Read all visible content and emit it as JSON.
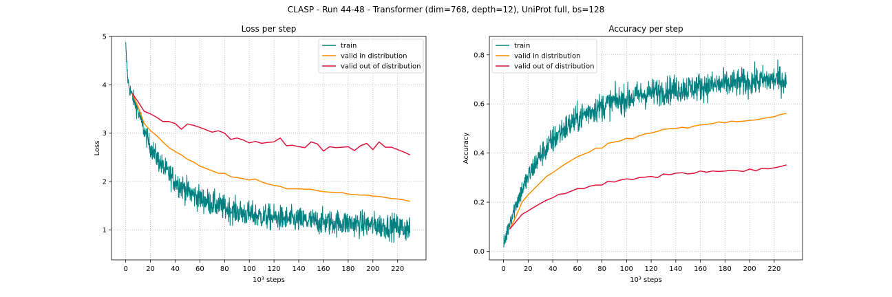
{
  "suptitle": "CLASP - Run 44-48 - Transformer (dim=768, depth=12), UniProt full, bs=128",
  "colors": {
    "train": "#008080",
    "valid_in": "#ff8c00",
    "valid_out": "#dc143c",
    "grid": "#b0b0b0"
  },
  "chart_data": [
    {
      "type": "line",
      "title": "Loss per step",
      "xlabel": "10³ steps",
      "ylabel": "Loss",
      "xlim": [
        -11.5,
        243
      ],
      "ylim": [
        0.38,
        5.0
      ],
      "xticks": [
        0,
        20,
        40,
        60,
        80,
        100,
        120,
        140,
        160,
        180,
        200,
        220
      ],
      "yticks": [
        1,
        2,
        3,
        4,
        5
      ],
      "grid": true,
      "legend": "top-right",
      "series": [
        {
          "name": "train",
          "color_key": "train",
          "noise": 0.13,
          "x": [
            0,
            1,
            2,
            4,
            6,
            8,
            10,
            12,
            15,
            18,
            20,
            25,
            30,
            35,
            40,
            45,
            50,
            55,
            60,
            70,
            80,
            90,
            100,
            110,
            120,
            130,
            140,
            150,
            160,
            170,
            180,
            190,
            200,
            210,
            220,
            225,
            230
          ],
          "y": [
            4.8,
            4.35,
            4.05,
            3.85,
            3.72,
            3.6,
            3.45,
            3.3,
            3.05,
            2.85,
            2.72,
            2.5,
            2.3,
            2.15,
            2.02,
            1.9,
            1.8,
            1.72,
            1.65,
            1.55,
            1.45,
            1.38,
            1.32,
            1.28,
            1.25,
            1.22,
            1.2,
            1.18,
            1.16,
            1.15,
            1.14,
            1.12,
            1.1,
            1.08,
            1.06,
            1.03,
            1.02
          ]
        },
        {
          "name": "valid in distribution",
          "color_key": "valid_in",
          "x": [
            5,
            10,
            15,
            20,
            25,
            30,
            35,
            40,
            45,
            50,
            55,
            60,
            65,
            70,
            75,
            80,
            85,
            90,
            95,
            100,
            105,
            110,
            115,
            120,
            125,
            130,
            135,
            140,
            145,
            150,
            155,
            160,
            165,
            170,
            175,
            180,
            185,
            190,
            195,
            200,
            205,
            210,
            215,
            220,
            225,
            230
          ],
          "y": [
            3.83,
            3.55,
            3.2,
            3.05,
            2.95,
            2.82,
            2.7,
            2.62,
            2.55,
            2.46,
            2.4,
            2.32,
            2.27,
            2.22,
            2.17,
            2.17,
            2.1,
            2.08,
            2.06,
            2.03,
            2.05,
            1.99,
            1.95,
            1.92,
            1.9,
            1.85,
            1.85,
            1.85,
            1.84,
            1.84,
            1.81,
            1.79,
            1.78,
            1.77,
            1.77,
            1.74,
            1.73,
            1.72,
            1.72,
            1.7,
            1.69,
            1.67,
            1.65,
            1.64,
            1.62,
            1.59
          ]
        },
        {
          "name": "valid out of distribution",
          "color_key": "valid_out",
          "x": [
            5,
            10,
            15,
            20,
            25,
            30,
            35,
            40,
            45,
            50,
            55,
            60,
            65,
            70,
            75,
            80,
            85,
            90,
            95,
            100,
            105,
            110,
            115,
            120,
            125,
            130,
            135,
            140,
            145,
            150,
            155,
            160,
            165,
            170,
            175,
            180,
            185,
            190,
            195,
            200,
            205,
            210,
            215,
            220,
            225,
            230
          ],
          "y": [
            3.83,
            3.65,
            3.45,
            3.4,
            3.33,
            3.24,
            3.24,
            3.2,
            3.08,
            3.19,
            3.16,
            3.12,
            3.07,
            3.02,
            3.05,
            3.0,
            2.87,
            2.9,
            2.86,
            2.8,
            2.83,
            2.79,
            2.81,
            2.82,
            2.9,
            2.74,
            2.75,
            2.72,
            2.7,
            2.82,
            2.78,
            2.63,
            2.72,
            2.7,
            2.71,
            2.72,
            2.64,
            2.74,
            2.79,
            2.66,
            2.82,
            2.71,
            2.71,
            2.66,
            2.61,
            2.55
          ]
        }
      ]
    },
    {
      "type": "line",
      "title": "Accuracy per step",
      "xlabel": "10³ steps",
      "ylabel": "Accuracy",
      "xlim": [
        -11.5,
        243
      ],
      "ylim": [
        -0.035,
        0.875
      ],
      "xticks": [
        0,
        20,
        40,
        60,
        80,
        100,
        120,
        140,
        160,
        180,
        200,
        220
      ],
      "yticks": [
        0.0,
        0.2,
        0.4,
        0.6,
        0.8
      ],
      "ytick_labels": [
        "0.0",
        "0.2",
        "0.4",
        "0.6",
        "0.8"
      ],
      "grid": true,
      "legend": "top-left",
      "series": [
        {
          "name": "train",
          "color_key": "train",
          "noise": 0.028,
          "x": [
            0,
            2,
            5,
            8,
            10,
            15,
            20,
            25,
            30,
            35,
            40,
            45,
            50,
            55,
            60,
            70,
            80,
            90,
            100,
            110,
            120,
            130,
            140,
            150,
            160,
            170,
            180,
            190,
            200,
            210,
            220,
            225,
            230
          ],
          "y": [
            0.02,
            0.06,
            0.12,
            0.16,
            0.19,
            0.25,
            0.3,
            0.35,
            0.39,
            0.42,
            0.45,
            0.48,
            0.5,
            0.52,
            0.54,
            0.57,
            0.59,
            0.61,
            0.62,
            0.635,
            0.645,
            0.655,
            0.66,
            0.665,
            0.67,
            0.675,
            0.68,
            0.685,
            0.69,
            0.695,
            0.7,
            0.7,
            0.69
          ]
        },
        {
          "name": "valid in distribution",
          "color_key": "valid_in",
          "x": [
            5,
            10,
            15,
            20,
            25,
            30,
            35,
            40,
            45,
            50,
            55,
            60,
            65,
            70,
            75,
            80,
            85,
            90,
            95,
            100,
            105,
            110,
            115,
            120,
            125,
            130,
            135,
            140,
            145,
            150,
            155,
            160,
            165,
            170,
            175,
            180,
            185,
            190,
            195,
            200,
            205,
            210,
            215,
            220,
            225,
            230
          ],
          "y": [
            0.09,
            0.14,
            0.2,
            0.23,
            0.255,
            0.28,
            0.305,
            0.32,
            0.338,
            0.355,
            0.37,
            0.385,
            0.395,
            0.405,
            0.42,
            0.42,
            0.44,
            0.445,
            0.45,
            0.46,
            0.458,
            0.47,
            0.478,
            0.482,
            0.488,
            0.497,
            0.499,
            0.5,
            0.505,
            0.502,
            0.51,
            0.515,
            0.517,
            0.52,
            0.527,
            0.523,
            0.53,
            0.528,
            0.53,
            0.533,
            0.535,
            0.54,
            0.545,
            0.548,
            0.557,
            0.562
          ]
        },
        {
          "name": "valid out of distribution",
          "color_key": "valid_out",
          "x": [
            5,
            10,
            15,
            20,
            25,
            30,
            35,
            40,
            45,
            50,
            55,
            60,
            65,
            70,
            75,
            80,
            85,
            90,
            95,
            100,
            105,
            110,
            115,
            120,
            125,
            130,
            135,
            140,
            145,
            150,
            155,
            160,
            165,
            170,
            175,
            180,
            185,
            190,
            195,
            200,
            205,
            210,
            215,
            220,
            225,
            230
          ],
          "y": [
            0.09,
            0.12,
            0.15,
            0.165,
            0.18,
            0.195,
            0.208,
            0.218,
            0.232,
            0.235,
            0.245,
            0.255,
            0.255,
            0.265,
            0.27,
            0.27,
            0.285,
            0.282,
            0.29,
            0.295,
            0.292,
            0.3,
            0.302,
            0.305,
            0.3,
            0.315,
            0.312,
            0.318,
            0.32,
            0.315,
            0.318,
            0.327,
            0.322,
            0.327,
            0.325,
            0.327,
            0.33,
            0.328,
            0.325,
            0.335,
            0.328,
            0.338,
            0.336,
            0.34,
            0.345,
            0.352
          ]
        }
      ]
    }
  ]
}
